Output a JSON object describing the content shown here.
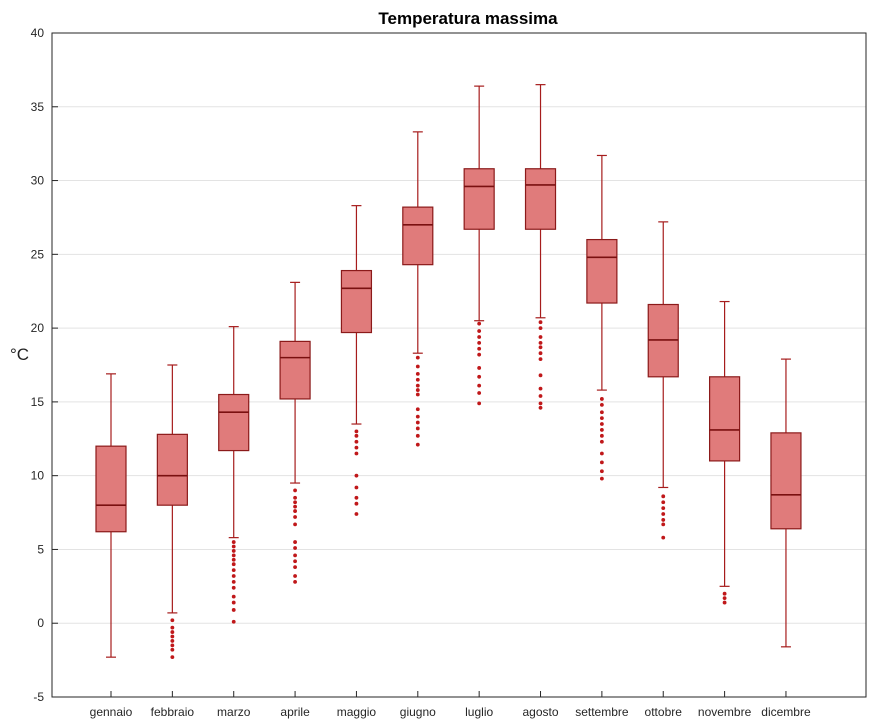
{
  "chart_data": {
    "type": "boxplot",
    "title": "Temperatura massima",
    "ylabel": "°C",
    "xlabel": "",
    "ylim": [
      -5,
      40
    ],
    "yticks": [
      -5,
      0,
      5,
      10,
      15,
      20,
      25,
      30,
      35,
      40
    ],
    "grid": true,
    "categories": [
      "gennaio",
      "febbraio",
      "marzo",
      "aprile",
      "maggio",
      "giugno",
      "luglio",
      "agosto",
      "settembre",
      "ottobre",
      "novembre",
      "dicembre"
    ],
    "boxes": [
      {
        "whisker_low": -2.3,
        "q1": 6.2,
        "median": 8.0,
        "q3": 12.0,
        "whisker_high": 16.9,
        "outliers": []
      },
      {
        "whisker_low": 0.7,
        "q1": 8.0,
        "median": 10.0,
        "q3": 12.8,
        "whisker_high": 17.5,
        "outliers": [
          0.2,
          -0.3,
          -0.6,
          -0.9,
          -1.2,
          -1.5,
          -1.8,
          -2.3
        ]
      },
      {
        "whisker_low": 5.8,
        "q1": 11.7,
        "median": 14.3,
        "q3": 15.5,
        "whisker_high": 20.1,
        "outliers": [
          5.5,
          5.2,
          4.9,
          4.6,
          4.3,
          4.0,
          3.6,
          3.2,
          2.8,
          2.4,
          1.8,
          1.4,
          0.9,
          0.1
        ]
      },
      {
        "whisker_low": 9.5,
        "q1": 15.2,
        "median": 18.0,
        "q3": 19.1,
        "whisker_high": 23.1,
        "outliers": [
          9.0,
          8.5,
          8.2,
          7.9,
          7.6,
          7.2,
          6.7,
          5.5,
          5.1,
          4.6,
          4.2,
          3.8,
          3.2,
          2.8
        ]
      },
      {
        "whisker_low": 13.5,
        "q1": 19.7,
        "median": 22.7,
        "q3": 23.9,
        "whisker_high": 28.3,
        "outliers": [
          13.0,
          12.7,
          12.3,
          11.9,
          11.5,
          10.0,
          9.2,
          8.5,
          8.1,
          7.4
        ]
      },
      {
        "whisker_low": 18.3,
        "q1": 24.3,
        "median": 27.0,
        "q3": 28.2,
        "whisker_high": 33.3,
        "outliers": [
          18.0,
          17.4,
          16.9,
          16.5,
          16.1,
          15.8,
          15.5,
          14.5,
          14.0,
          13.6,
          13.2,
          12.7,
          12.1
        ]
      },
      {
        "whisker_low": 20.5,
        "q1": 26.7,
        "median": 29.6,
        "q3": 30.8,
        "whisker_high": 36.4,
        "outliers": [
          20.3,
          19.8,
          19.4,
          19.0,
          18.6,
          18.2,
          17.3,
          16.7,
          16.1,
          15.6,
          14.9
        ]
      },
      {
        "whisker_low": 20.7,
        "q1": 26.7,
        "median": 29.7,
        "q3": 30.8,
        "whisker_high": 36.5,
        "outliers": [
          20.4,
          20.0,
          19.4,
          19.0,
          18.7,
          18.3,
          17.9,
          16.8,
          15.9,
          15.4,
          14.9,
          14.6
        ]
      },
      {
        "whisker_low": 15.8,
        "q1": 21.7,
        "median": 24.8,
        "q3": 26.0,
        "whisker_high": 31.7,
        "outliers": [
          15.2,
          14.8,
          14.3,
          13.9,
          13.5,
          13.1,
          12.7,
          12.3,
          11.5,
          10.9,
          10.3,
          9.8
        ]
      },
      {
        "whisker_low": 9.2,
        "q1": 16.7,
        "median": 19.2,
        "q3": 21.6,
        "whisker_high": 27.2,
        "outliers": [
          8.6,
          8.2,
          7.8,
          7.4,
          7.0,
          6.7,
          5.8
        ]
      },
      {
        "whisker_low": 2.5,
        "q1": 11.0,
        "median": 13.1,
        "q3": 16.7,
        "whisker_high": 21.8,
        "outliers": [
          2.0,
          1.7,
          1.4
        ]
      },
      {
        "whisker_low": -1.6,
        "q1": 6.4,
        "median": 8.7,
        "q3": 12.9,
        "whisker_high": 17.9,
        "outliers": []
      }
    ],
    "colors": {
      "box_fill": "#e07b7b",
      "box_edge": "#8b1a1a",
      "whisker": "#a61c1c",
      "median": "#7a1010",
      "outlier": "#c0181a",
      "grid": "#e3e3e3",
      "axis": "#262626"
    }
  }
}
